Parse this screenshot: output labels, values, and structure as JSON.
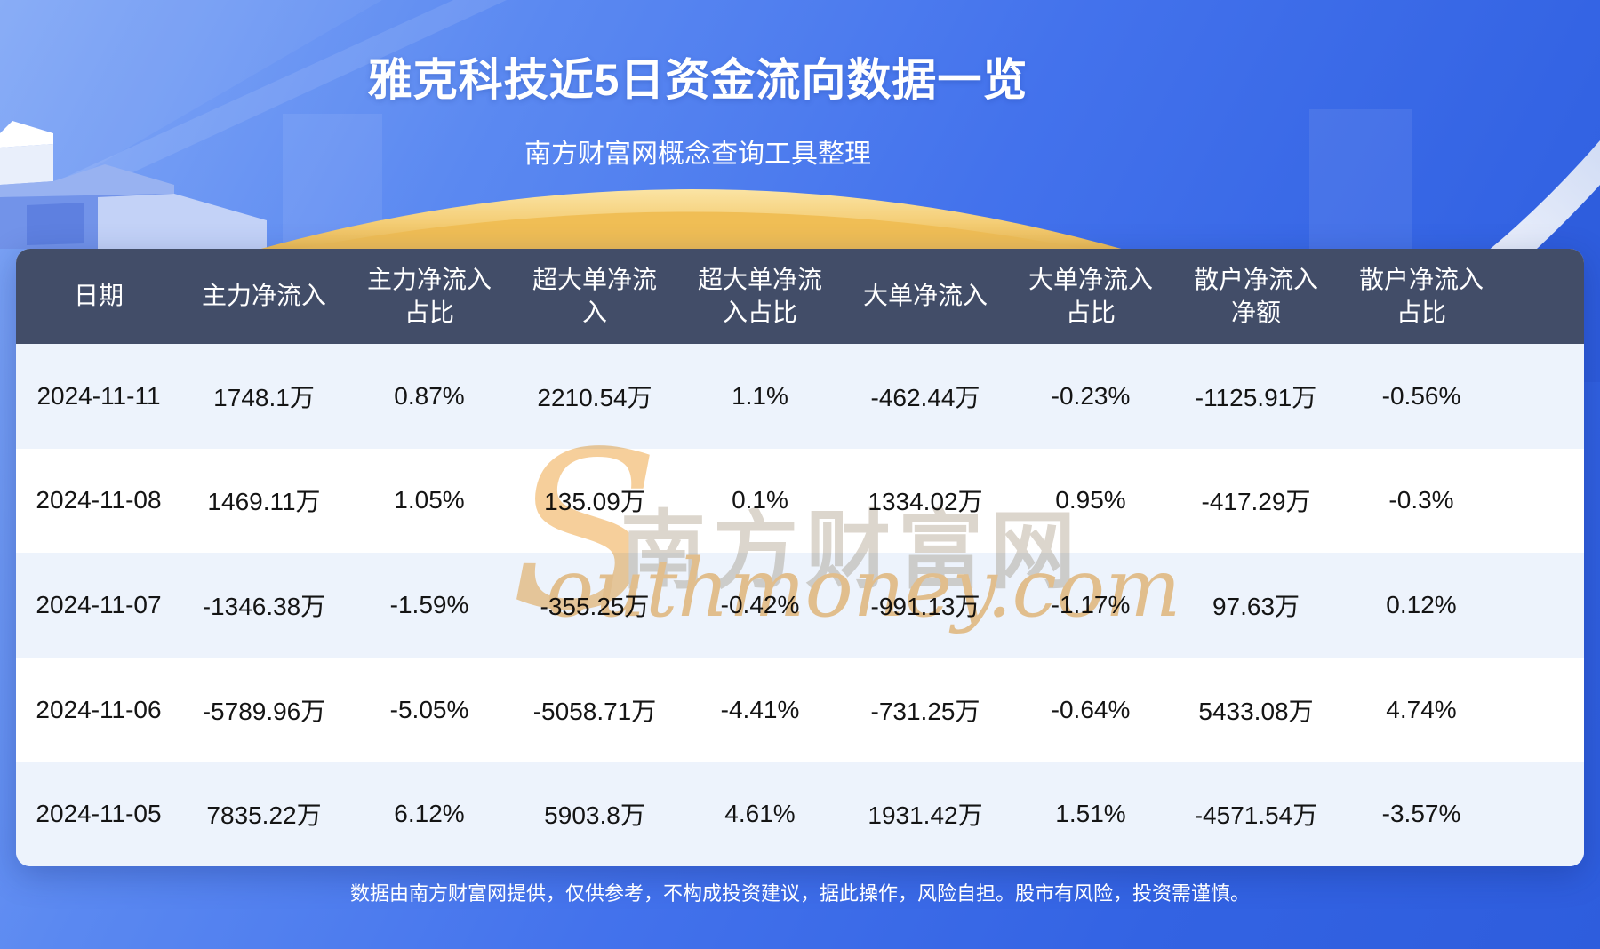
{
  "page": {
    "title": "雅克科技近5日资金流向数据一览",
    "subtitle": "南方财富网概念查询工具整理",
    "footer_disclaimer": "数据由南方财富网提供，仅供参考，不构成投资建议，据此操作，风险自担。股市有风险，投资需谨慎。"
  },
  "watermark": {
    "initial": "S",
    "cjk": "南方财富网",
    "latin": "outhmoney.com"
  },
  "colors": {
    "background_top": "#83A9F6",
    "background_bottom": "#2E5DDD",
    "table_header_bg": "#424D68",
    "row_tint": "#EDF3FC",
    "row_white": "#FFFFFF",
    "gold_arc": "#F0C25F",
    "swoosh": "#E9EEF7",
    "text_dark": "#141414",
    "text_white": "#FFFFFF"
  },
  "chart_data": {
    "type": "table",
    "title": "雅克科技近5日资金流向数据一览",
    "unit": "万",
    "columns": [
      "日期",
      "主力净流入",
      "主力净流入\n占比",
      "超大单净流\n入",
      "超大单净流\n入占比",
      "大单净流入",
      "大单净流入\n占比",
      "散户净流入\n净额",
      "散户净流入\n占比"
    ],
    "rows": [
      [
        "2024-11-11",
        "1748.1万",
        "0.87%",
        "2210.54万",
        "1.1%",
        "-462.44万",
        "-0.23%",
        "-1125.91万",
        "-0.56%"
      ],
      [
        "2024-11-08",
        "1469.11万",
        "1.05%",
        "135.09万",
        "0.1%",
        "1334.02万",
        "0.95%",
        "-417.29万",
        "-0.3%"
      ],
      [
        "2024-11-07",
        "-1346.38万",
        "-1.59%",
        "-355.25万",
        "-0.42%",
        "-991.13万",
        "-1.17%",
        "97.63万",
        "0.12%"
      ],
      [
        "2024-11-06",
        "-5789.96万",
        "-5.05%",
        "-5058.71万",
        "-4.41%",
        "-731.25万",
        "-0.64%",
        "5433.08万",
        "4.74%"
      ],
      [
        "2024-11-05",
        "7835.22万",
        "6.12%",
        "5903.8万",
        "4.61%",
        "1931.42万",
        "1.51%",
        "-4571.54万",
        "-3.57%"
      ]
    ]
  }
}
